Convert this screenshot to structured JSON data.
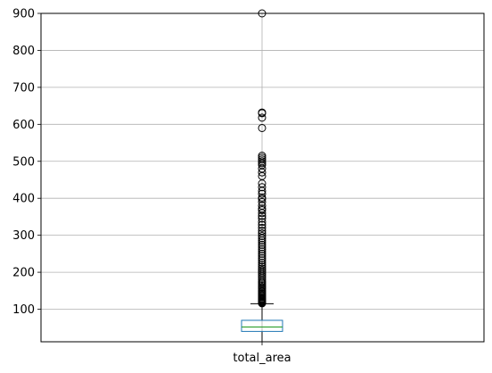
{
  "chart_data": {
    "type": "box",
    "title": "",
    "xlabel": "",
    "ylabel": "",
    "categories": [
      "total_area"
    ],
    "ylim": [
      12,
      900
    ],
    "yticks": [
      100,
      200,
      300,
      400,
      500,
      600,
      700,
      800,
      900
    ],
    "ytick_labels": [
      "100",
      "200",
      "300",
      "400",
      "500",
      "600",
      "700",
      "800",
      "900"
    ],
    "grid": true,
    "box": {
      "label": "total_area",
      "min": 12,
      "q1": 40,
      "median": 52,
      "q3": 70,
      "whisker_high": 115,
      "outliers": [
        116,
        117,
        118,
        119,
        120,
        122,
        124,
        126,
        128,
        130,
        133,
        136,
        139,
        142,
        145,
        148,
        151,
        155,
        159,
        163,
        167,
        171,
        175,
        180,
        185,
        190,
        195,
        200,
        205,
        210,
        215,
        220,
        226,
        232,
        238,
        244,
        250,
        256,
        262,
        268,
        274,
        280,
        286,
        292,
        298,
        305,
        312,
        320,
        328,
        336,
        345,
        352,
        360,
        368,
        372,
        380,
        390,
        398,
        402,
        412,
        420,
        430,
        440,
        460,
        470,
        480,
        490,
        495,
        500,
        505,
        510,
        515,
        590,
        618,
        630,
        632,
        900
      ]
    },
    "colors": {
      "box": "#1f77b4",
      "median": "#2ca02c",
      "whisker": "#000000",
      "outlier": "#000000",
      "grid": "#b0b0b0"
    }
  }
}
